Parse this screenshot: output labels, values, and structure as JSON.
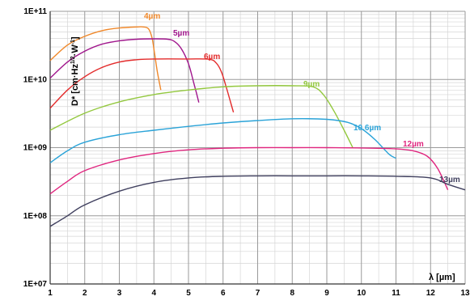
{
  "chart_data": {
    "type": "line",
    "title": "",
    "xlabel": "λ [µm]",
    "ylabel": "D* [cm·Hz",
    "ylabel_sup": "1/2",
    "ylabel_tail": "·W",
    "ylabel_sup2": "-1",
    "ylabel_end": "]",
    "x_scale": "linear",
    "y_scale": "log",
    "xlim": [
      1,
      13
    ],
    "ylim": [
      10000000,
      100000000000
    ],
    "grid": true,
    "legend": "none (series labeled inline)",
    "x_ticks": [
      "1",
      "2",
      "3",
      "4",
      "5",
      "6",
      "7",
      "8",
      "9",
      "10",
      "11",
      "12",
      "13"
    ],
    "y_ticks": [
      "1E+07",
      "1E+08",
      "1E+09",
      "1E+10",
      "1E+11"
    ],
    "series": [
      {
        "name": "4µm",
        "color": "#f0882a",
        "points": [
          [
            1,
            19000000000.0
          ],
          [
            1.5,
            32000000000.0
          ],
          [
            2,
            43000000000.0
          ],
          [
            2.5,
            52000000000.0
          ],
          [
            3,
            57000000000.0
          ],
          [
            3.5,
            59000000000.0
          ],
          [
            3.7,
            59000000000.0
          ],
          [
            3.85,
            55000000000.0
          ],
          [
            3.95,
            40000000000.0
          ],
          [
            4.02,
            24000000000.0
          ],
          [
            4.1,
            13000000000.0
          ],
          [
            4.2,
            7000000000.0
          ]
        ]
      },
      {
        "name": "5µm",
        "color": "#a0168c",
        "points": [
          [
            1,
            10500000000.0
          ],
          [
            1.5,
            18000000000.0
          ],
          [
            2,
            26000000000.0
          ],
          [
            2.5,
            33000000000.0
          ],
          [
            3,
            37000000000.0
          ],
          [
            3.5,
            39000000000.0
          ],
          [
            4,
            39500000000.0
          ],
          [
            4.4,
            39000000000.0
          ],
          [
            4.6,
            36000000000.0
          ],
          [
            4.8,
            28000000000.0
          ],
          [
            5.0,
            17000000000.0
          ],
          [
            5.15,
            9000000000.0
          ],
          [
            5.3,
            4600000000.0
          ]
        ]
      },
      {
        "name": "6µm",
        "color": "#e32c2c",
        "points": [
          [
            1,
            3800000000.0
          ],
          [
            1.5,
            7000000000.0
          ],
          [
            2,
            11000000000.0
          ],
          [
            2.5,
            15000000000.0
          ],
          [
            3,
            18000000000.0
          ],
          [
            3.5,
            19500000000.0
          ],
          [
            4,
            20000000000.0
          ],
          [
            5,
            20000000000.0
          ],
          [
            5.6,
            19800000000.0
          ],
          [
            5.8,
            17500000000.0
          ],
          [
            5.95,
            13000000000.0
          ],
          [
            6.1,
            7500000000.0
          ],
          [
            6.3,
            3300000000.0
          ]
        ]
      },
      {
        "name": "9µm",
        "color": "#93c83e",
        "points": [
          [
            1,
            1800000000.0
          ],
          [
            2,
            3200000000.0
          ],
          [
            3,
            4700000000.0
          ],
          [
            4,
            6000000000.0
          ],
          [
            5,
            7000000000.0
          ],
          [
            6,
            7800000000.0
          ],
          [
            7,
            8100000000.0
          ],
          [
            8,
            8100000000.0
          ],
          [
            8.6,
            7800000000.0
          ],
          [
            8.9,
            6000000000.0
          ],
          [
            9.2,
            3500000000.0
          ],
          [
            9.5,
            1800000000.0
          ],
          [
            9.75,
            1000000000.0
          ]
        ]
      },
      {
        "name": "10.6µm",
        "color": "#2aa3d8",
        "points": [
          [
            1,
            600000000.0
          ],
          [
            1.5,
            900000000.0
          ],
          [
            2,
            1200000000.0
          ],
          [
            3,
            1550000000.0
          ],
          [
            4,
            1800000000.0
          ],
          [
            5,
            2050000000.0
          ],
          [
            6,
            2300000000.0
          ],
          [
            7,
            2500000000.0
          ],
          [
            8,
            2650000000.0
          ],
          [
            9,
            2600000000.0
          ],
          [
            9.6,
            2350000000.0
          ],
          [
            10,
            1900000000.0
          ],
          [
            10.4,
            1300000000.0
          ],
          [
            10.8,
            800000000.0
          ],
          [
            11,
            700000000.0
          ]
        ]
      },
      {
        "name": "12µm",
        "color": "#e0267f",
        "points": [
          [
            1,
            210000000.0
          ],
          [
            1.5,
            320000000.0
          ],
          [
            2,
            460000000.0
          ],
          [
            3,
            660000000.0
          ],
          [
            4,
            820000000.0
          ],
          [
            5,
            930000000.0
          ],
          [
            6,
            980000000.0
          ],
          [
            7,
            1000000000.0
          ],
          [
            8,
            1000000000.0
          ],
          [
            9,
            1000000000.0
          ],
          [
            10,
            990000000.0
          ],
          [
            11,
            960000000.0
          ],
          [
            11.5,
            900000000.0
          ],
          [
            11.9,
            750000000.0
          ],
          [
            12.2,
            500000000.0
          ],
          [
            12.5,
            240000000.0
          ]
        ]
      },
      {
        "name": "13µm",
        "color": "#3f3f5e",
        "points": [
          [
            1,
            70000000.0
          ],
          [
            1.5,
            100000000.0
          ],
          [
            2,
            145000000.0
          ],
          [
            3,
            230000000.0
          ],
          [
            4,
            310000000.0
          ],
          [
            5,
            360000000.0
          ],
          [
            6,
            380000000.0
          ],
          [
            7,
            385000000.0
          ],
          [
            8,
            385000000.0
          ],
          [
            9,
            385000000.0
          ],
          [
            10,
            385000000.0
          ],
          [
            11,
            380000000.0
          ],
          [
            12,
            360000000.0
          ],
          [
            12.5,
            290000000.0
          ],
          [
            13,
            240000000.0
          ]
        ]
      }
    ]
  }
}
